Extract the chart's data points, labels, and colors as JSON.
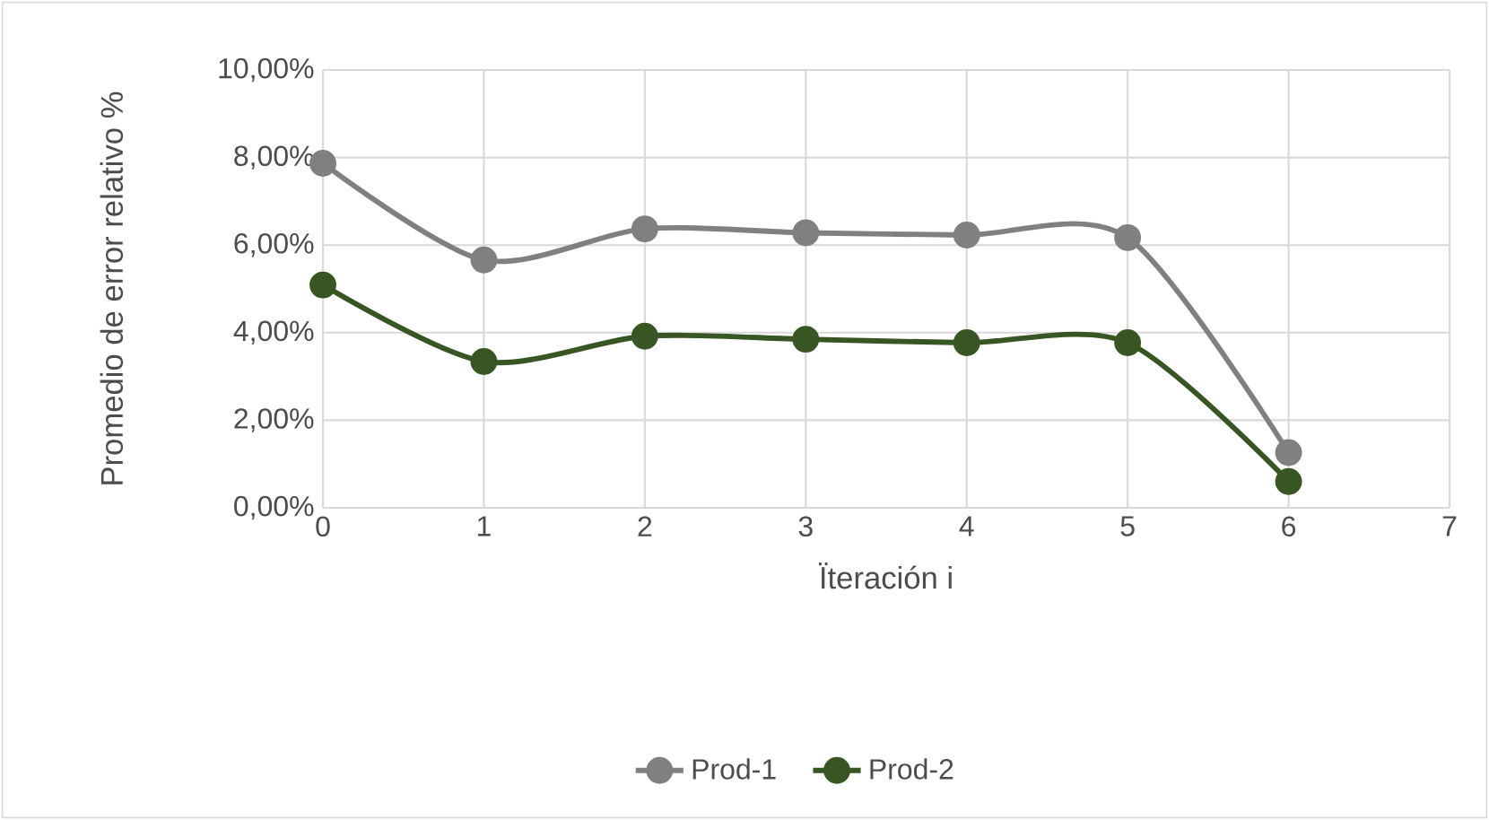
{
  "chart_data": {
    "type": "line",
    "xlabel": "Ïteración i",
    "ylabel": "Promedio de error relativo  %",
    "x": [
      0,
      1,
      2,
      3,
      4,
      5,
      6
    ],
    "series": [
      {
        "name": "Prod-1",
        "color": "#808080",
        "values": [
          7.87,
          5.66,
          6.37,
          6.28,
          6.23,
          6.17,
          1.26
        ]
      },
      {
        "name": "Prod-2",
        "color": "#375623",
        "values": [
          5.09,
          3.34,
          3.92,
          3.85,
          3.77,
          3.77,
          0.6
        ]
      }
    ],
    "xlim": [
      0,
      7
    ],
    "xticks": [
      0,
      1,
      2,
      3,
      4,
      5,
      6,
      7
    ],
    "ylim": [
      0,
      10
    ],
    "yticks": [
      {
        "value": 0,
        "label": "0,00%"
      },
      {
        "value": 2,
        "label": "2,00%"
      },
      {
        "value": 4,
        "label": "4,00%"
      },
      {
        "value": 6,
        "label": "6,00%"
      },
      {
        "value": 8,
        "label": "8,00%"
      },
      {
        "value": 10,
        "label": "10,00%"
      }
    ],
    "grid": true,
    "legend": "bottom",
    "marker": "circle",
    "line_style": "solid"
  }
}
